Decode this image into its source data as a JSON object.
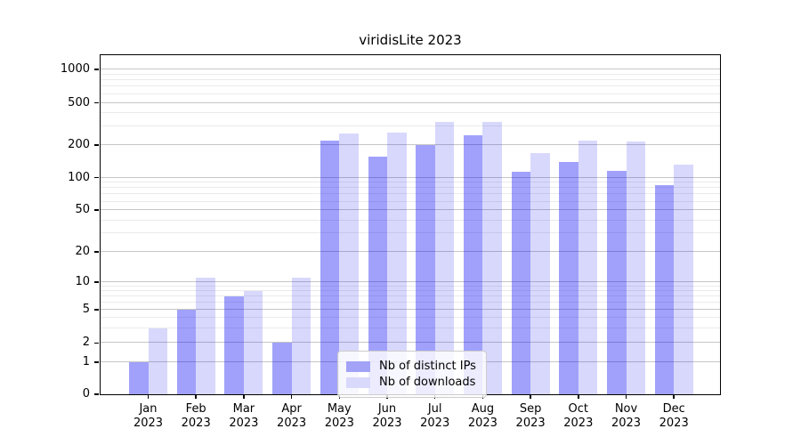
{
  "title": "viridisLite 2023",
  "legend": {
    "items": [
      {
        "label": "Nb of distinct IPs",
        "swatch_color": "#a2a2f7"
      },
      {
        "label": "Nb of downloads",
        "swatch_color": "#d9d9fc"
      }
    ]
  },
  "colors": {
    "ips_bar_fill": "rgba(8,8,245,0.38)",
    "downloads_bar_fill": "rgba(8,8,245,0.155)",
    "ips_bar_on_white": "#a2a2f7",
    "downloads_bar_on_white": "#d9d9fc",
    "major_gridline": "#c6c6c6",
    "minor_gridline": "#ebebeb",
    "axis": "#000000"
  },
  "chart_data": {
    "type": "bar",
    "title": "viridisLite 2023",
    "categories": [
      "Jan 2023",
      "Feb 2023",
      "Mar 2023",
      "Apr 2023",
      "May 2023",
      "Jun 2023",
      "Jul 2023",
      "Aug 2023",
      "Sep 2023",
      "Oct 2023",
      "Nov 2023",
      "Dec 2023"
    ],
    "months": [
      "Jan",
      "Feb",
      "Mar",
      "Apr",
      "May",
      "Jun",
      "Jul",
      "Aug",
      "Sep",
      "Oct",
      "Nov",
      "Dec"
    ],
    "year": "2023",
    "series": [
      {
        "name": "Nb of distinct IPs",
        "values": [
          1,
          5,
          7,
          2,
          220,
          155,
          200,
          245,
          113,
          140,
          115,
          85
        ]
      },
      {
        "name": "Nb of downloads",
        "values": [
          3,
          11,
          8,
          11,
          255,
          260,
          330,
          330,
          170,
          220,
          215,
          133
        ]
      }
    ],
    "yscale": "pseudo-log (log-like, compressed near zero)",
    "yticks": [
      0,
      1,
      2,
      5,
      10,
      20,
      50,
      100,
      200,
      500,
      1000
    ],
    "ytick_labels": [
      "0",
      "1",
      "2",
      "5",
      "10",
      "20",
      "50",
      "100",
      "200",
      "500",
      "1000"
    ],
    "minor_yticks": [
      3,
      4,
      6,
      7,
      8,
      9,
      30,
      40,
      60,
      70,
      80,
      90,
      300,
      400,
      600,
      700,
      800,
      900
    ],
    "ylim": [
      0,
      1390
    ],
    "xlabel": "",
    "ylabel": "",
    "grid": "horizontal major + minor",
    "legend_position": "lower center, inside plot"
  }
}
